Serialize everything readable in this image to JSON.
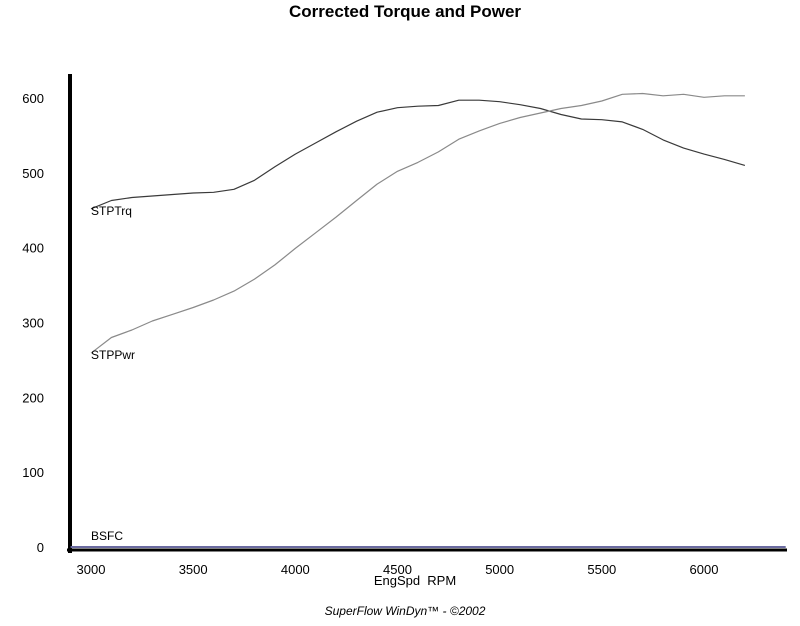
{
  "chart_data": {
    "type": "line",
    "title": "Corrected Torque and Power",
    "xlabel": "EngSpd  RPM",
    "ylabel": "",
    "xlim": [
      2900,
      6400
    ],
    "ylim": [
      0,
      650
    ],
    "x_ticks": [
      "3000",
      "3500",
      "4000",
      "4500",
      "5000",
      "5500",
      "6000"
    ],
    "y_ticks": [
      "0",
      "100",
      "200",
      "300",
      "400",
      "500",
      "600"
    ],
    "grid": false,
    "legend": "inline labels at left end of each series",
    "series": [
      {
        "name": "STPTrq",
        "color": "#3a3a3a",
        "x": [
          3000,
          3100,
          3200,
          3300,
          3400,
          3500,
          3600,
          3700,
          3800,
          3900,
          4000,
          4100,
          4200,
          4300,
          4400,
          4500,
          4600,
          4700,
          4800,
          4900,
          5000,
          5100,
          5200,
          5300,
          5400,
          5500,
          5600,
          5700,
          5800,
          5900,
          6000,
          6100,
          6200
        ],
        "values": [
          452,
          463,
          467,
          469,
          471,
          473,
          474,
          478,
          490,
          508,
          525,
          540,
          555,
          569,
          581,
          587,
          589,
          590,
          597,
          597,
          595,
          591,
          586,
          578,
          572,
          571,
          568,
          558,
          544,
          533,
          525,
          518,
          510
        ]
      },
      {
        "name": "STPPwr",
        "color": "#8a8a8a",
        "x": [
          3000,
          3100,
          3200,
          3300,
          3400,
          3500,
          3600,
          3700,
          3800,
          3900,
          4000,
          4100,
          4200,
          4300,
          4400,
          4500,
          4600,
          4700,
          4800,
          4900,
          5000,
          5100,
          5200,
          5300,
          5400,
          5500,
          5600,
          5700,
          5800,
          5900,
          6000,
          6100,
          6200
        ],
        "values": [
          259,
          280,
          290,
          302,
          311,
          320,
          330,
          342,
          358,
          377,
          399,
          420,
          441,
          463,
          485,
          502,
          514,
          528,
          545,
          556,
          566,
          574,
          580,
          586,
          590,
          596,
          605,
          606,
          603,
          605,
          601,
          603,
          603
        ]
      },
      {
        "name": "BSFC",
        "color": "#6a6aa0",
        "x": [
          2900,
          6400
        ],
        "values": [
          0,
          0
        ]
      }
    ]
  },
  "footer": "SuperFlow WinDyn™ - ©2002"
}
